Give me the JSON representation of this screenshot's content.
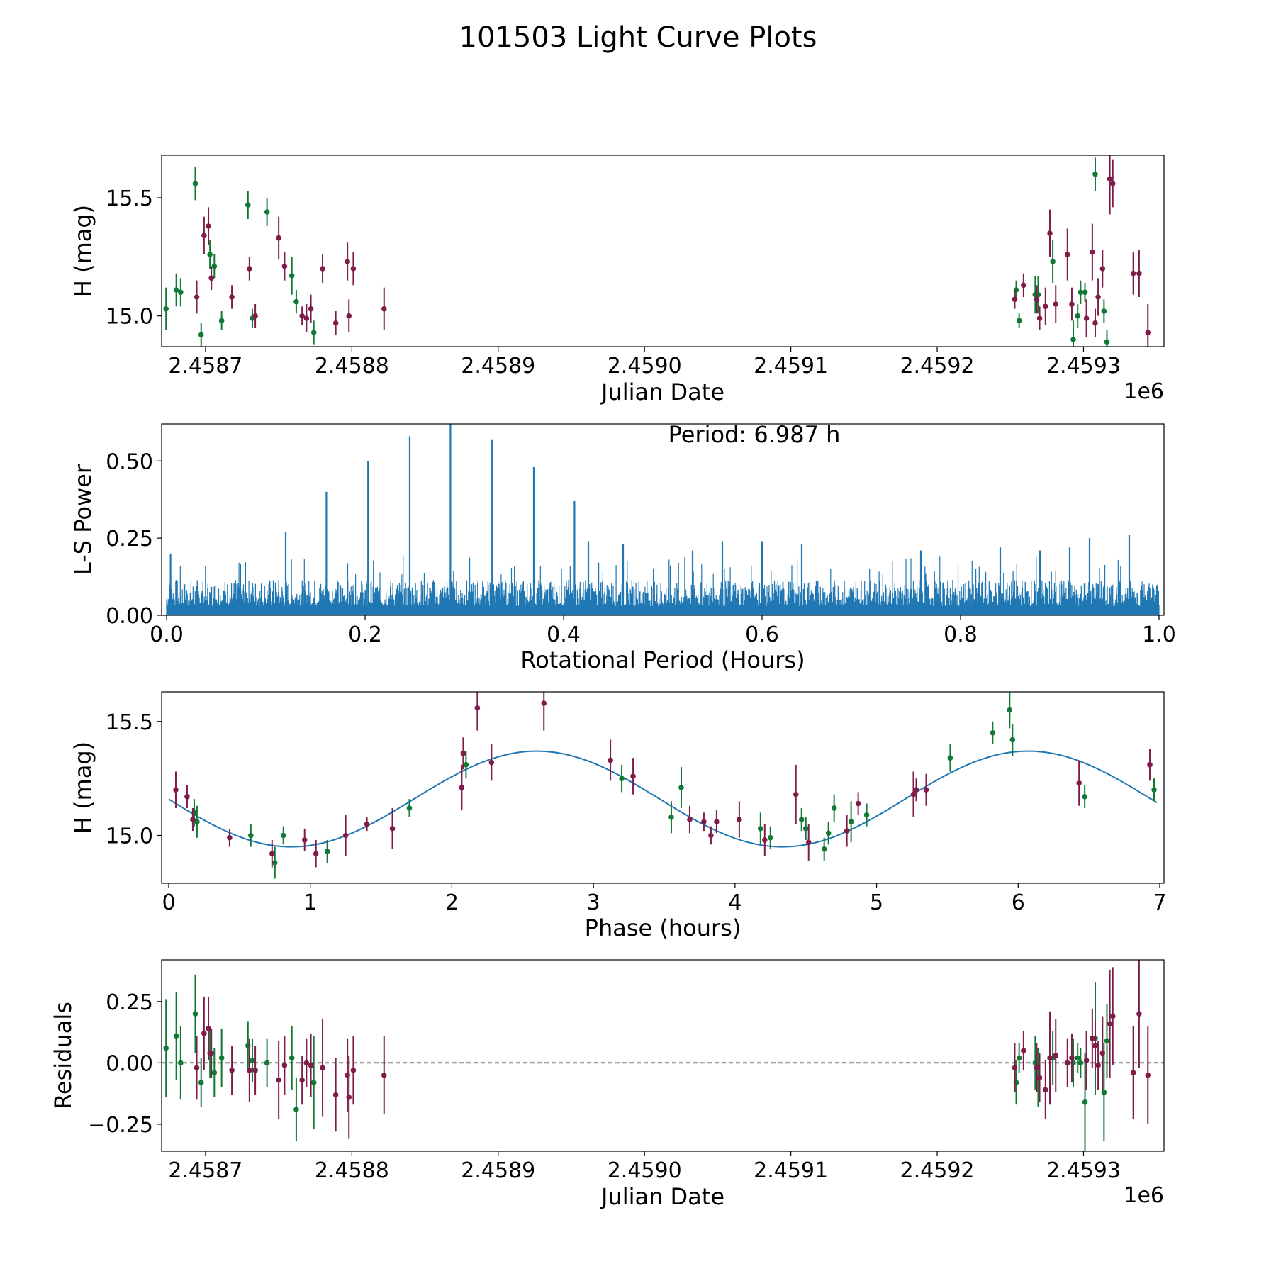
{
  "figure": {
    "title": "101503 Light Curve Plots"
  },
  "colors": {
    "green": "#107a34",
    "maroon": "#7f1c4a",
    "blue": "#1f77b4",
    "axes": "#000000"
  },
  "chart_data": [
    {
      "id": "lightcurve",
      "type": "scatter",
      "xlabel": "Julian Date",
      "ylabel": "H (mag)",
      "x_offset_label": "1e6",
      "xlim": [
        2458670,
        2459355
      ],
      "ylim": [
        14.87,
        15.68
      ],
      "yinvert": false,
      "xticks": [
        2458700,
        2458800,
        2458900,
        2459000,
        2459100,
        2459200,
        2459300
      ],
      "xtick_labels": [
        "2.4587",
        "2.4588",
        "2.4589",
        "2.4590",
        "2.4591",
        "2.4592",
        "2.4593"
      ],
      "yticks": [
        15.0,
        15.5
      ],
      "ytick_labels": [
        "15.0",
        "15.5"
      ],
      "series": [
        {
          "name": "green",
          "color": "green",
          "x": [
            2458673,
            2458680,
            2458683,
            2458693,
            2458697,
            2458703,
            2458706,
            2458711,
            2458729,
            2458732,
            2458742,
            2458759,
            2458762,
            2458774,
            2459254,
            2459256,
            2459267,
            2459269,
            2459279,
            2459293,
            2459296,
            2459298,
            2459301,
            2459308,
            2459314,
            2459316
          ],
          "y": [
            15.03,
            15.11,
            15.1,
            15.56,
            14.92,
            15.26,
            15.21,
            14.98,
            15.47,
            14.99,
            15.44,
            15.17,
            15.06,
            14.93,
            15.11,
            14.98,
            15.09,
            15.09,
            15.23,
            14.9,
            15.0,
            15.1,
            15.1,
            15.6,
            15.02,
            14.89
          ],
          "err": [
            0.09,
            0.07,
            0.06,
            0.07,
            0.05,
            0.06,
            0.05,
            0.04,
            0.06,
            0.04,
            0.06,
            0.08,
            0.05,
            0.05,
            0.04,
            0.03,
            0.08,
            0.08,
            0.09,
            0.08,
            0.05,
            0.05,
            0.04,
            0.07,
            0.05,
            0.05
          ]
        },
        {
          "name": "maroon",
          "color": "maroon",
          "x": [
            2458694,
            2458699,
            2458702,
            2458704,
            2458718,
            2458730,
            2458734,
            2458750,
            2458754,
            2458766,
            2458769,
            2458772,
            2458780,
            2458789,
            2458797,
            2458798,
            2458801,
            2458822,
            2459253,
            2459259,
            2459268,
            2459270,
            2459274,
            2459277,
            2459281,
            2459289,
            2459292,
            2459302,
            2459306,
            2459308,
            2459310,
            2459313,
            2459318,
            2459320,
            2459334,
            2459338,
            2459344
          ],
          "y": [
            15.08,
            15.34,
            15.38,
            15.16,
            15.08,
            15.2,
            15.0,
            15.33,
            15.21,
            15.0,
            14.99,
            15.03,
            15.2,
            14.97,
            15.23,
            15.0,
            15.2,
            15.03,
            15.07,
            15.13,
            15.07,
            14.99,
            15.04,
            15.35,
            15.05,
            15.26,
            15.05,
            14.99,
            15.27,
            14.97,
            15.08,
            15.2,
            15.58,
            15.56,
            15.18,
            15.18,
            14.93
          ],
          "err": [
            0.07,
            0.08,
            0.08,
            0.05,
            0.05,
            0.05,
            0.05,
            0.09,
            0.06,
            0.04,
            0.06,
            0.06,
            0.06,
            0.05,
            0.08,
            0.07,
            0.07,
            0.09,
            0.04,
            0.05,
            0.06,
            0.05,
            0.08,
            0.1,
            0.08,
            0.11,
            0.07,
            0.08,
            0.12,
            0.06,
            0.08,
            0.08,
            0.15,
            0.1,
            0.09,
            0.1,
            0.12
          ]
        }
      ]
    },
    {
      "id": "periodogram",
      "type": "line",
      "xlabel": "Rotational Period (Hours)",
      "ylabel": "L-S Power",
      "xlim": [
        -0.005,
        1.005
      ],
      "ylim": [
        0.0,
        0.62
      ],
      "xticks": [
        0.0,
        0.2,
        0.4,
        0.6,
        0.8,
        1.0
      ],
      "xtick_labels": [
        "0.0",
        "0.2",
        "0.4",
        "0.6",
        "0.8",
        "1.0"
      ],
      "yticks": [
        0.0,
        0.25,
        0.5
      ],
      "ytick_labels": [
        "0.00",
        "0.25",
        "0.50"
      ],
      "annotation": "Period: 6.987 h",
      "color": "blue",
      "noise_level": 0.12,
      "peaks": {
        "x": [
          0.004,
          0.12,
          0.161,
          0.203,
          0.245,
          0.286,
          0.328,
          0.37,
          0.411,
          0.425,
          0.46,
          0.53,
          0.56,
          0.6,
          0.64,
          0.76,
          0.84,
          0.88,
          0.91,
          0.93,
          0.97
        ],
        "y": [
          0.2,
          0.27,
          0.4,
          0.5,
          0.58,
          0.62,
          0.57,
          0.48,
          0.37,
          0.24,
          0.23,
          0.21,
          0.24,
          0.24,
          0.23,
          0.21,
          0.22,
          0.21,
          0.22,
          0.25,
          0.26
        ]
      }
    },
    {
      "id": "phased",
      "type": "scatter",
      "xlabel": "Phase (hours)",
      "ylabel": "H (mag)",
      "xlim": [
        -0.05,
        7.03
      ],
      "ylim": [
        14.79,
        15.63
      ],
      "xticks": [
        0,
        1,
        2,
        3,
        4,
        5,
        6,
        7
      ],
      "xtick_labels": [
        "0",
        "1",
        "2",
        "3",
        "4",
        "5",
        "6",
        "7"
      ],
      "yticks": [
        15.0,
        15.5
      ],
      "ytick_labels": [
        "15.0",
        "15.5"
      ],
      "model": {
        "color": "blue",
        "period_hours": 3.47,
        "mean": 15.16,
        "amplitude": 0.21,
        "peak_phase": 2.6,
        "x_range": [
          0.0,
          6.98
        ]
      },
      "series": [
        {
          "name": "green",
          "color": "green",
          "x": [
            0.18,
            0.2,
            0.58,
            0.75,
            0.81,
            1.12,
            1.7,
            2.1,
            3.2,
            3.55,
            3.62,
            4.18,
            4.25,
            4.47,
            4.5,
            4.63,
            4.66,
            4.7,
            4.82,
            4.93,
            5.52,
            5.82,
            5.94,
            5.96,
            6.47,
            6.96
          ],
          "y": [
            15.1,
            15.06,
            15.0,
            14.88,
            15.0,
            14.93,
            15.12,
            15.31,
            15.25,
            15.08,
            15.21,
            15.03,
            14.99,
            15.07,
            15.03,
            14.94,
            15.01,
            15.12,
            15.06,
            15.09,
            15.34,
            15.45,
            15.55,
            15.42,
            15.17,
            15.2
          ],
          "err": [
            0.06,
            0.07,
            0.05,
            0.07,
            0.04,
            0.05,
            0.04,
            0.06,
            0.06,
            0.07,
            0.09,
            0.07,
            0.05,
            0.05,
            0.05,
            0.05,
            0.05,
            0.06,
            0.09,
            0.05,
            0.06,
            0.05,
            0.08,
            0.07,
            0.05,
            0.05
          ]
        },
        {
          "name": "maroon",
          "color": "maroon",
          "x": [
            0.05,
            0.13,
            0.17,
            0.43,
            0.73,
            0.96,
            1.04,
            1.25,
            1.4,
            1.58,
            2.07,
            2.08,
            2.18,
            2.28,
            2.65,
            3.12,
            3.28,
            3.68,
            3.78,
            3.83,
            3.87,
            4.03,
            4.21,
            4.43,
            4.52,
            4.79,
            4.87,
            5.26,
            5.28,
            5.35,
            6.43,
            6.93
          ],
          "y": [
            15.2,
            15.17,
            15.07,
            14.99,
            14.92,
            14.98,
            14.92,
            15.0,
            15.05,
            15.03,
            15.21,
            15.36,
            15.56,
            15.32,
            15.58,
            15.33,
            15.26,
            15.07,
            15.06,
            15.0,
            15.06,
            15.07,
            14.98,
            15.18,
            14.97,
            15.02,
            15.14,
            15.18,
            15.2,
            15.2,
            15.23,
            15.31
          ],
          "err": [
            0.08,
            0.05,
            0.05,
            0.04,
            0.06,
            0.05,
            0.06,
            0.09,
            0.03,
            0.09,
            0.1,
            0.07,
            0.1,
            0.08,
            0.12,
            0.09,
            0.08,
            0.06,
            0.04,
            0.04,
            0.05,
            0.08,
            0.07,
            0.13,
            0.08,
            0.07,
            0.05,
            0.1,
            0.05,
            0.07,
            0.1,
            0.07
          ]
        }
      ]
    },
    {
      "id": "residuals",
      "type": "scatter",
      "xlabel": "Julian Date",
      "ylabel": "Residuals",
      "x_offset_label": "1e6",
      "xlim": [
        2458670,
        2459355
      ],
      "ylim": [
        -0.36,
        0.42
      ],
      "xticks": [
        2458700,
        2458800,
        2458900,
        2459000,
        2459100,
        2459200,
        2459300
      ],
      "xtick_labels": [
        "2.4587",
        "2.4588",
        "2.4589",
        "2.4590",
        "2.4591",
        "2.4592",
        "2.4593"
      ],
      "yticks": [
        -0.25,
        0.0,
        0.25
      ],
      "ytick_labels": [
        "−0.25",
        "0.00",
        "0.25"
      ],
      "zero_line": true,
      "series": [
        {
          "name": "green",
          "color": "green",
          "x": [
            2458673,
            2458680,
            2458683,
            2458693,
            2458697,
            2458703,
            2458706,
            2458711,
            2458729,
            2458732,
            2458742,
            2458759,
            2458762,
            2458774,
            2459254,
            2459256,
            2459267,
            2459269,
            2459279,
            2459293,
            2459296,
            2459298,
            2459301,
            2459308,
            2459314,
            2459316
          ],
          "y": [
            0.06,
            0.11,
            0.0,
            0.2,
            -0.08,
            0.04,
            -0.04,
            0.02,
            0.07,
            0.01,
            0.0,
            0.02,
            -0.19,
            -0.08,
            -0.08,
            0.02,
            0.0,
            -0.06,
            0.02,
            0.0,
            0.02,
            0.0,
            -0.16,
            0.1,
            -0.12,
            0.09
          ],
          "err": [
            0.2,
            0.18,
            0.15,
            0.16,
            0.1,
            0.1,
            0.1,
            0.12,
            0.1,
            0.09,
            0.1,
            0.13,
            0.13,
            0.19,
            0.09,
            0.06,
            0.11,
            0.12,
            0.11,
            0.1,
            0.06,
            0.06,
            0.2,
            0.23,
            0.2,
            0.15
          ]
        },
        {
          "name": "maroon",
          "color": "maroon",
          "x": [
            2458694,
            2458699,
            2458702,
            2458704,
            2458718,
            2458730,
            2458734,
            2458750,
            2458754,
            2458766,
            2458769,
            2458772,
            2458780,
            2458789,
            2458797,
            2458798,
            2458801,
            2458822,
            2459253,
            2459259,
            2459268,
            2459270,
            2459274,
            2459277,
            2459281,
            2459289,
            2459292,
            2459302,
            2459306,
            2459308,
            2459310,
            2459313,
            2459318,
            2459320,
            2459334,
            2459338,
            2459344
          ],
          "y": [
            -0.02,
            0.12,
            0.14,
            0.04,
            -0.03,
            -0.03,
            -0.03,
            -0.07,
            -0.01,
            -0.07,
            0.0,
            -0.01,
            -0.02,
            -0.13,
            -0.05,
            -0.14,
            -0.03,
            -0.05,
            -0.02,
            0.05,
            -0.02,
            -0.06,
            -0.11,
            0.02,
            0.03,
            0.0,
            0.02,
            0.01,
            0.1,
            0.07,
            -0.01,
            0.04,
            0.16,
            0.19,
            -0.04,
            0.2,
            -0.05
          ],
          "err": [
            0.13,
            0.15,
            0.13,
            0.1,
            0.1,
            0.13,
            0.1,
            0.16,
            0.12,
            0.1,
            0.1,
            0.13,
            0.2,
            0.15,
            0.15,
            0.17,
            0.14,
            0.16,
            0.1,
            0.08,
            0.1,
            0.1,
            0.12,
            0.19,
            0.15,
            0.1,
            0.1,
            0.12,
            0.12,
            0.1,
            0.1,
            0.15,
            0.22,
            0.2,
            0.19,
            0.22,
            0.2
          ]
        }
      ]
    }
  ]
}
